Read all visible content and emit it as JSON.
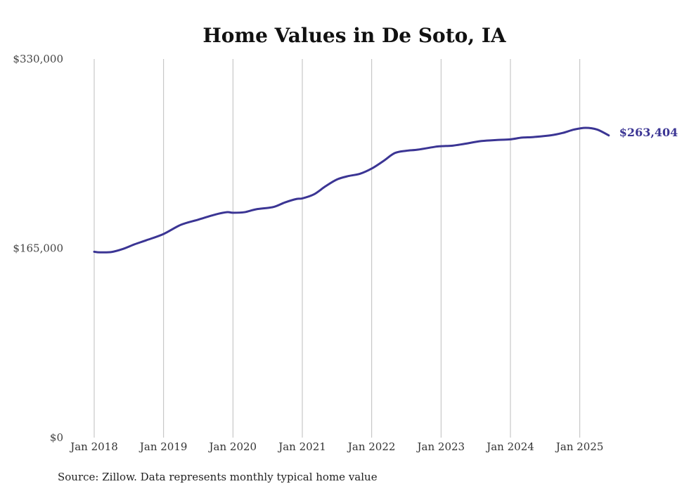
{
  "chart_data": {
    "type": "line",
    "title": "Home Values in De Soto, IA",
    "xlabel": "",
    "ylabel": "",
    "ylim": [
      0,
      330000
    ],
    "yticks": [
      {
        "value": 0,
        "label": "$0"
      },
      {
        "value": 165000,
        "label": "$165,000"
      },
      {
        "value": 330000,
        "label": "$330,000"
      }
    ],
    "xticks": [
      {
        "value": 2018,
        "label": "Jan 2018"
      },
      {
        "value": 2019,
        "label": "Jan 2019"
      },
      {
        "value": 2020,
        "label": "Jan 2020"
      },
      {
        "value": 2021,
        "label": "Jan 2021"
      },
      {
        "value": 2022,
        "label": "Jan 2022"
      },
      {
        "value": 2023,
        "label": "Jan 2023"
      },
      {
        "value": 2024,
        "label": "Jan 2024"
      },
      {
        "value": 2025,
        "label": "Jan 2025"
      }
    ],
    "xlim": [
      2018,
      2025.5
    ],
    "grid": "vertical",
    "series": [
      {
        "name": "Typical home value",
        "color": "#3b3594",
        "end_label": "$263,404",
        "x": [
          2018.0,
          2018.083,
          2018.25,
          2018.417,
          2018.583,
          2018.75,
          2019.0,
          2019.25,
          2019.5,
          2019.75,
          2019.917,
          2020.0,
          2020.167,
          2020.333,
          2020.583,
          2020.75,
          2020.917,
          2021.0,
          2021.167,
          2021.333,
          2021.5,
          2021.667,
          2021.833,
          2022.0,
          2022.167,
          2022.333,
          2022.5,
          2022.667,
          2022.917,
          2023.0,
          2023.167,
          2023.333,
          2023.583,
          2023.833,
          2024.0,
          2024.167,
          2024.333,
          2024.583,
          2024.75,
          2024.917,
          2025.083,
          2025.25,
          2025.417
        ],
        "values": [
          162000,
          161500,
          161800,
          164500,
          168500,
          172000,
          177500,
          185500,
          190000,
          194500,
          196500,
          196000,
          196500,
          199000,
          201000,
          205000,
          208000,
          208500,
          212000,
          219000,
          225000,
          228000,
          230000,
          234500,
          241000,
          248000,
          250000,
          251000,
          253500,
          254000,
          254500,
          256000,
          258500,
          259500,
          260000,
          261500,
          262000,
          263500,
          265500,
          268500,
          270000,
          268500,
          263404
        ]
      }
    ]
  },
  "footer": {
    "source": "Source: Zillow. Data represents monthly typical home value"
  }
}
